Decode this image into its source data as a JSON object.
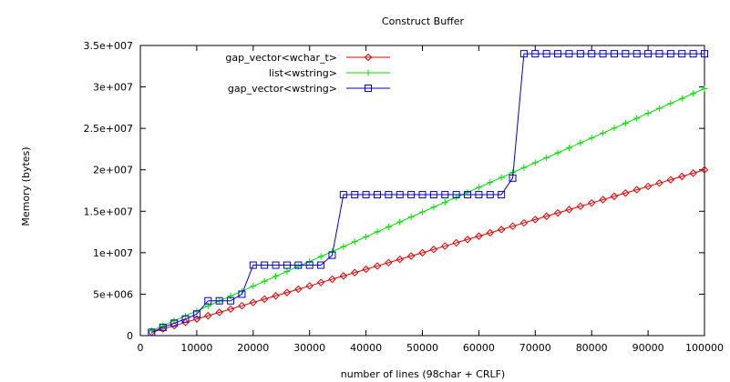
{
  "chart_data": {
    "type": "line",
    "title": "Construct Buffer",
    "xlabel": "number of lines (98char + CRLF)",
    "ylabel": "Memory (bytes)",
    "xlim": [
      0,
      100000
    ],
    "ylim": [
      0,
      35000000
    ],
    "x_ticks": [
      0,
      10000,
      20000,
      30000,
      40000,
      50000,
      60000,
      70000,
      80000,
      90000,
      100000
    ],
    "x_tick_labels": [
      "0",
      "10000",
      "20000",
      "30000",
      "40000",
      "50000",
      "60000",
      "70000",
      "80000",
      "90000",
      "100000"
    ],
    "y_ticks": [
      0,
      5000000,
      10000000,
      15000000,
      20000000,
      25000000,
      30000000,
      35000000
    ],
    "y_tick_labels": [
      "0",
      "5e+006",
      "1e+007",
      "1.5e+007",
      "2e+007",
      "2.5e+007",
      "3e+007",
      "3.5e+007"
    ],
    "grid": false,
    "legend_position": "top-left",
    "series": [
      {
        "name": "gap_vector<wchar_t>",
        "color": "#e00000",
        "marker": "diamond",
        "x_start": 2000,
        "x_step": 2000,
        "x_end": 100000,
        "y_start": 400000,
        "y_end": 20000000
      },
      {
        "name": "list<wstring>",
        "color": "#00e000",
        "marker": "plus",
        "x_start": 2000,
        "x_step": 2000,
        "x_end": 100000,
        "y_start": 600000,
        "y_end": 29800000
      },
      {
        "name": "gap_vector<wstring>",
        "color": "#0000d0",
        "marker": "square",
        "x": [
          2000,
          4000,
          6000,
          8000,
          10000,
          12000,
          14000,
          16000,
          18000,
          20000,
          22000,
          24000,
          26000,
          28000,
          30000,
          32000,
          34000,
          36000,
          38000,
          40000,
          42000,
          44000,
          46000,
          48000,
          50000,
          52000,
          54000,
          56000,
          58000,
          60000,
          62000,
          64000,
          66000,
          68000,
          70000,
          72000,
          74000,
          76000,
          78000,
          80000,
          82000,
          84000,
          86000,
          88000,
          90000,
          92000,
          94000,
          96000,
          98000,
          100000
        ],
        "y": [
          400000,
          1000000,
          1500000,
          2000000,
          2600000,
          4200000,
          4200000,
          4200000,
          5000000,
          8500000,
          8500000,
          8500000,
          8500000,
          8500000,
          8500000,
          8500000,
          9700000,
          17000000,
          17000000,
          17000000,
          17000000,
          17000000,
          17000000,
          17000000,
          17000000,
          17000000,
          17000000,
          17000000,
          17000000,
          17000000,
          17000000,
          17000000,
          19000000,
          34000000,
          34000000,
          34000000,
          34000000,
          34000000,
          34000000,
          34000000,
          34000000,
          34000000,
          34000000,
          34000000,
          34000000,
          34000000,
          34000000,
          34000000,
          34000000,
          34000000
        ]
      }
    ]
  }
}
